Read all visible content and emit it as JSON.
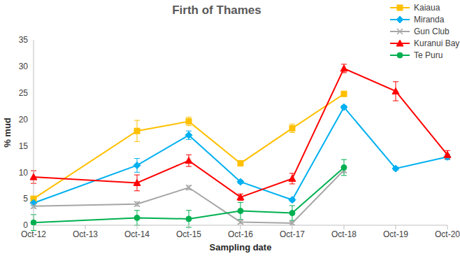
{
  "chart_data": {
    "type": "line",
    "title": "Firth of Thames",
    "x_label": "Sampling date",
    "y_label": "% mud",
    "categories": [
      "Oct-12",
      "Oct-13",
      "Oct-14",
      "Oct-15",
      "Oct-16",
      "Oct-17",
      "Oct-18",
      "Oct-19",
      "Oct-20"
    ],
    "ylim": [
      0,
      35
    ],
    "yticks": [
      0,
      5,
      10,
      15,
      20,
      25,
      30,
      35
    ],
    "grid": false,
    "legend": "upper right",
    "series": [
      {
        "name": "Kaiaua",
        "color": "#FFC000",
        "marker": "square",
        "values": [
          5.0,
          null,
          17.8,
          19.6,
          11.7,
          18.3,
          24.8,
          null,
          null
        ],
        "errors": [
          null,
          null,
          2.0,
          0.8,
          0.4,
          0.8,
          null,
          null,
          null
        ]
      },
      {
        "name": "Miranda",
        "color": "#00B0F0",
        "marker": "diamond",
        "values": [
          4.2,
          null,
          11.3,
          17.0,
          8.2,
          4.8,
          22.3,
          10.7,
          12.9
        ],
        "errors": [
          0.5,
          null,
          1.3,
          0.8,
          0.3,
          0.3,
          0.3,
          0.3,
          0.5
        ]
      },
      {
        "name": "Gun Club",
        "color": "#A6A6A6",
        "marker": "x",
        "values": [
          3.6,
          null,
          4.0,
          7.1,
          0.6,
          0.4,
          10.4,
          null,
          null
        ],
        "errors": [
          0.4,
          null,
          0.4,
          0.4,
          0.3,
          0.3,
          0.5,
          null,
          null
        ]
      },
      {
        "name": "Kuranui Bay",
        "color": "#FF0000",
        "marker": "triangle",
        "values": [
          9.1,
          null,
          8.0,
          12.2,
          5.3,
          8.8,
          29.6,
          25.3,
          13.3
        ],
        "errors": [
          1.2,
          null,
          1.5,
          1.1,
          0.6,
          1.0,
          0.8,
          1.8,
          0.8
        ]
      },
      {
        "name": "Te Puru",
        "color": "#00B050",
        "marker": "circle",
        "values": [
          0.5,
          null,
          1.4,
          1.2,
          2.7,
          2.3,
          10.9,
          null,
          null
        ],
        "errors": [
          1.5,
          null,
          1.4,
          1.6,
          1.6,
          1.4,
          1.5,
          null,
          null
        ]
      }
    ]
  }
}
